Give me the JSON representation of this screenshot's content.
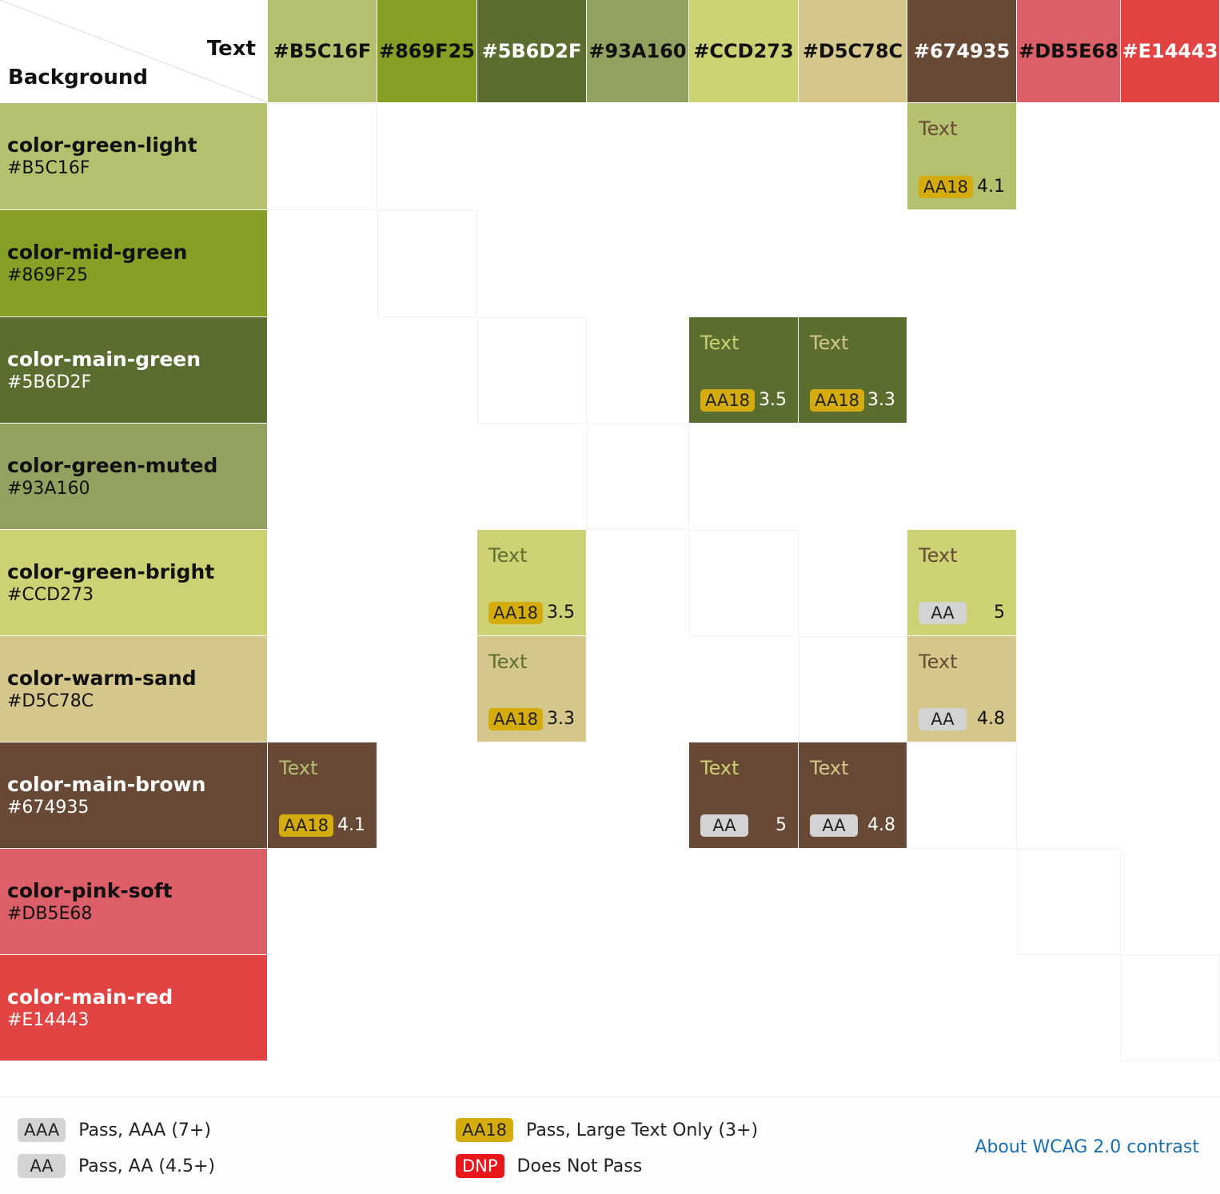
{
  "header": {
    "text_label": "Text",
    "background_label": "Background"
  },
  "colors": [
    {
      "name": "color-green-light",
      "hex": "#B5C16F"
    },
    {
      "name": "color-mid-green",
      "hex": "#869F25"
    },
    {
      "name": "color-main-green",
      "hex": "#5B6D2F"
    },
    {
      "name": "color-green-muted",
      "hex": "#93A160"
    },
    {
      "name": "color-green-bright",
      "hex": "#CCD273"
    },
    {
      "name": "color-warm-sand",
      "hex": "#D5C78C"
    },
    {
      "name": "color-main-brown",
      "hex": "#674935"
    },
    {
      "name": "color-pink-soft",
      "hex": "#DB5E68"
    },
    {
      "name": "color-main-red",
      "hex": "#E14443"
    }
  ],
  "header_text_colors": [
    "#111111",
    "#111111",
    "#ffffff",
    "#111111",
    "#111111",
    "#111111",
    "#ffffff",
    "#111111",
    "#ffffff"
  ],
  "row_text_colors": [
    "#111111",
    "#111111",
    "#ffffff",
    "#111111",
    "#111111",
    "#111111",
    "#ffffff",
    "#111111",
    "#ffffff"
  ],
  "badge_colors": {
    "AAA": {
      "bg": "#d3d3d3",
      "fg": "#222222"
    },
    "AA": {
      "bg": "#d3d3d3",
      "fg": "#222222"
    },
    "AA18": {
      "bg": "#d4ac0d",
      "fg": "#222222"
    },
    "DNP": {
      "bg": "#e8171b",
      "fg": "#ffffff"
    }
  },
  "cells": [
    {
      "row": 0,
      "col": 6,
      "label": "Text",
      "badge": "AA18",
      "ratio": "4.1"
    },
    {
      "row": 2,
      "col": 4,
      "label": "Text",
      "badge": "AA18",
      "ratio": "3.5"
    },
    {
      "row": 2,
      "col": 5,
      "label": "Text",
      "badge": "AA18",
      "ratio": "3.3"
    },
    {
      "row": 4,
      "col": 2,
      "label": "Text",
      "badge": "AA18",
      "ratio": "3.5"
    },
    {
      "row": 4,
      "col": 6,
      "label": "Text",
      "badge": "AA",
      "ratio": "5"
    },
    {
      "row": 5,
      "col": 2,
      "label": "Text",
      "badge": "AA18",
      "ratio": "3.3"
    },
    {
      "row": 5,
      "col": 6,
      "label": "Text",
      "badge": "AA",
      "ratio": "4.8"
    },
    {
      "row": 6,
      "col": 0,
      "label": "Text",
      "badge": "AA18",
      "ratio": "4.1"
    },
    {
      "row": 6,
      "col": 4,
      "label": "Text",
      "badge": "AA",
      "ratio": "5"
    },
    {
      "row": 6,
      "col": 5,
      "label": "Text",
      "badge": "AA",
      "ratio": "4.8"
    }
  ],
  "legend": {
    "items": [
      {
        "badge": "AAA",
        "label": "Pass, AAA (7+)"
      },
      {
        "badge": "AA",
        "label": "Pass, AA (4.5+)"
      },
      {
        "badge": "AA18",
        "label": "Pass, Large Text Only (3+)"
      },
      {
        "badge": "DNP",
        "label": "Does Not Pass"
      }
    ],
    "link_text": "About WCAG 2.0 contrast"
  }
}
